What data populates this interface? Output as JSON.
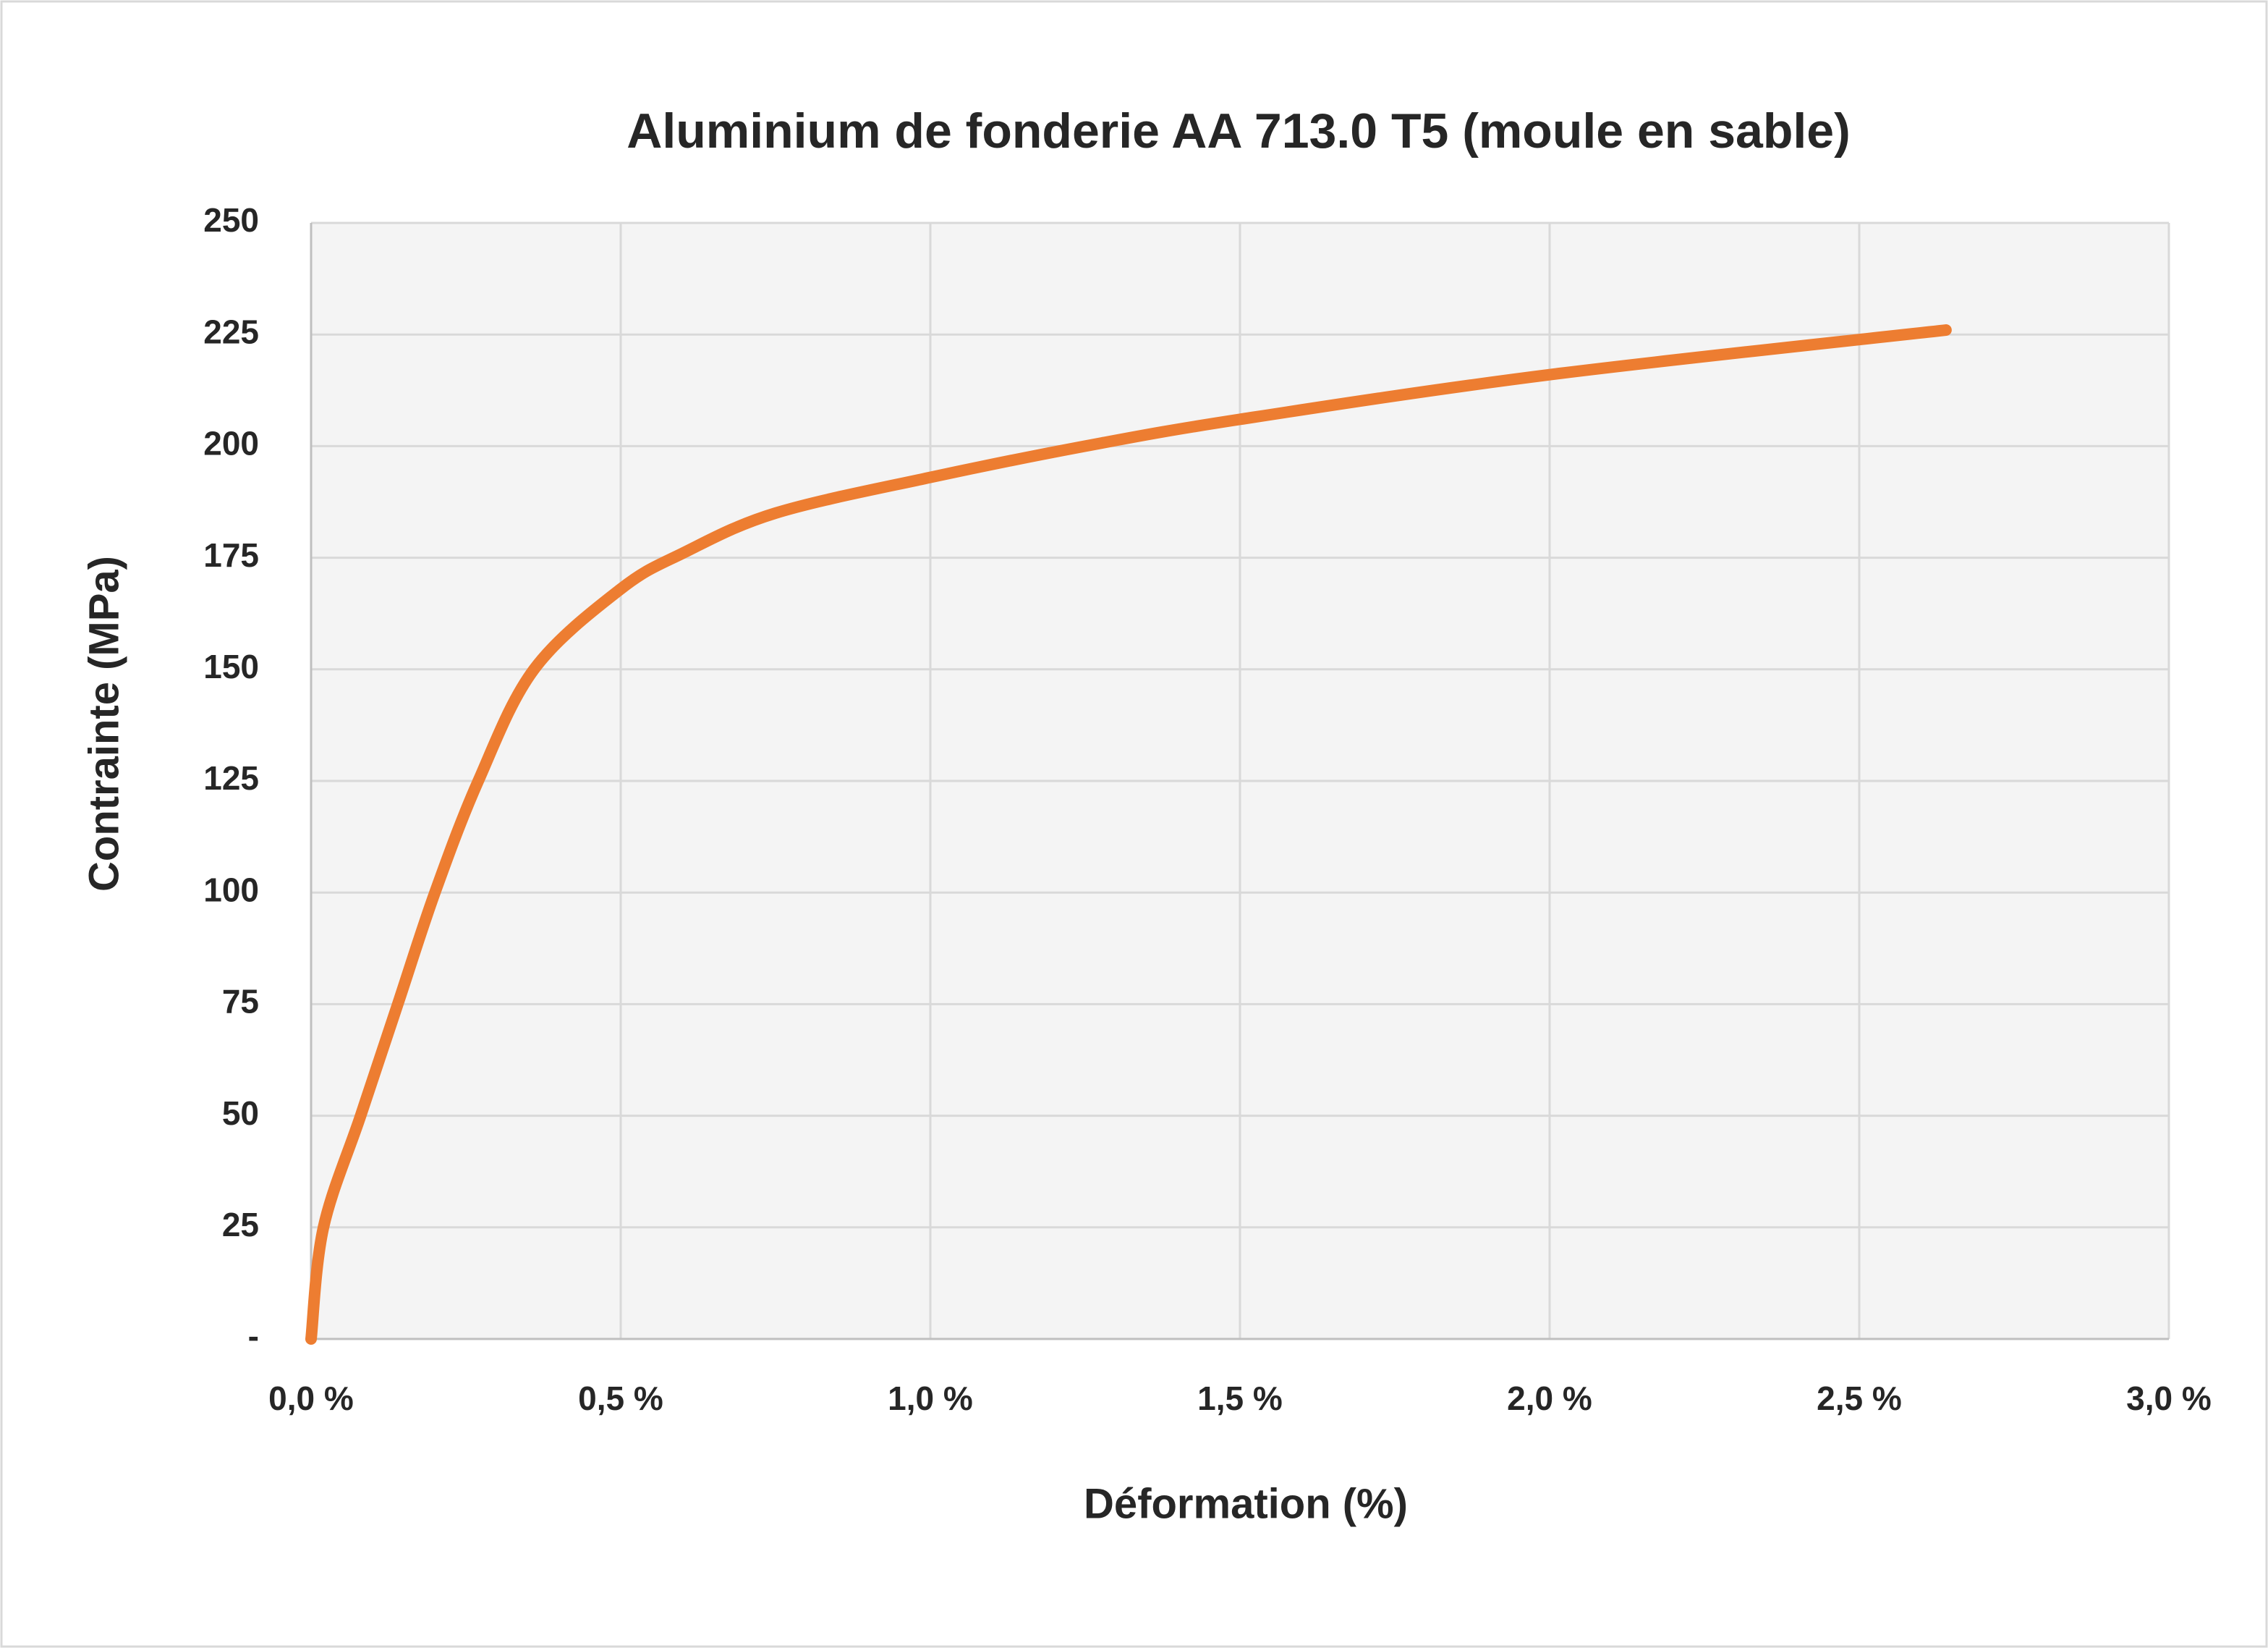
{
  "chart_data": {
    "type": "line",
    "title": "Aluminium de fonderie AA 713.0 T5 (moule en sable)",
    "x_label": "Déformation (%)",
    "y_label": "Contrainte (MPa)",
    "x": [
      0,
      0.02,
      0.08,
      0.14,
      0.2,
      0.27,
      0.36,
      0.5,
      0.6,
      0.75,
      1.0,
      1.25,
      1.5,
      2.0,
      2.64
    ],
    "series": [
      {
        "name": "Contrainte",
        "color": "#ed7d31",
        "values": [
          0,
          25,
          50,
          75,
          100,
          125,
          150,
          168,
          176,
          185,
          193,
          200,
          206,
          216,
          226
        ]
      }
    ],
    "xlim": [
      0,
      3
    ],
    "ylim": [
      0,
      250
    ],
    "xticks": [
      {
        "value": 0,
        "label": "0,0 %"
      },
      {
        "value": 0.5,
        "label": "0,5 %"
      },
      {
        "value": 1,
        "label": "1,0 %"
      },
      {
        "value": 1.5,
        "label": "1,5 %"
      },
      {
        "value": 2,
        "label": "2,0 %"
      },
      {
        "value": 2.5,
        "label": "2,5 %"
      },
      {
        "value": 3,
        "label": "3,0 %"
      }
    ],
    "yticks": [
      {
        "value": 0,
        "label": "-"
      },
      25,
      50,
      75,
      100,
      125,
      150,
      175,
      200,
      225,
      250
    ],
    "grid": true
  }
}
